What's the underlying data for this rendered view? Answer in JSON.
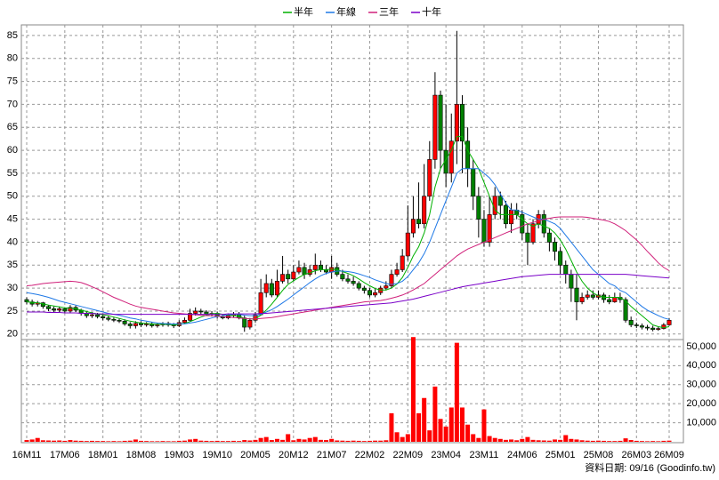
{
  "chart_data": {
    "type": "candlestick",
    "legend": "top",
    "grid": true,
    "footnote": "資料日期: 09/16 (Goodinfo.tw)",
    "up_color": "#ff0000",
    "down_color": "#008000",
    "categories": [
      "16M11",
      null,
      null,
      null,
      null,
      null,
      null,
      "17M06",
      null,
      null,
      null,
      null,
      null,
      null,
      "18M01",
      null,
      null,
      null,
      null,
      null,
      null,
      "18M08",
      null,
      null,
      null,
      null,
      null,
      null,
      "19M03",
      null,
      null,
      null,
      null,
      null,
      null,
      "19M10",
      null,
      null,
      null,
      null,
      null,
      null,
      "20M05",
      null,
      null,
      null,
      null,
      null,
      null,
      "20M12",
      null,
      null,
      null,
      null,
      null,
      null,
      "21M07",
      null,
      null,
      null,
      null,
      null,
      null,
      "22M02",
      null,
      null,
      null,
      null,
      null,
      null,
      "22M09",
      null,
      null,
      null,
      null,
      null,
      null,
      "23M04",
      null,
      null,
      null,
      null,
      null,
      null,
      "23M11",
      null,
      null,
      null,
      null,
      null,
      null,
      "24M06",
      null,
      null,
      null,
      null,
      null,
      null,
      "25M01",
      null,
      null,
      null,
      null,
      null,
      null,
      "25M08",
      null,
      null,
      null,
      null,
      null,
      null,
      "26M03",
      null,
      null,
      null,
      null,
      null,
      "26M09"
    ],
    "open": [
      27.5,
      27,
      26.5,
      26.8,
      26,
      25.5,
      25.2,
      25.5,
      25,
      25.8,
      25.2,
      24.5,
      24,
      24.2,
      23.8,
      23.5,
      23.2,
      23,
      22.8,
      22.2,
      21.8,
      22.3,
      22,
      22.2,
      21.8,
      22,
      22.3,
      22,
      21.8,
      22.5,
      23,
      24.5,
      25,
      24.8,
      24.3,
      24.5,
      23.8,
      23.5,
      24,
      24.3,
      23.5,
      21.5,
      23,
      24.2,
      29,
      31,
      28.5,
      31.5,
      33,
      32,
      33.5,
      34.5,
      33,
      34,
      35,
      34,
      33.5,
      34.5,
      33,
      32,
      31.5,
      31,
      30,
      29.5,
      28.5,
      29,
      30,
      30.5,
      33,
      34,
      37,
      42,
      45,
      44,
      50,
      58,
      72,
      60,
      55,
      62,
      70,
      62,
      56,
      50,
      45,
      40,
      46,
      50,
      48,
      44,
      47,
      46,
      42,
      40,
      44,
      46,
      42,
      40,
      38,
      35,
      33,
      30,
      27,
      28,
      28.5,
      28,
      28.5,
      27.5,
      27,
      28,
      27.5,
      23,
      22,
      21.8,
      21.5,
      21.3,
      21,
      21.2,
      22
    ],
    "high": [
      28,
      27.5,
      27.2,
      27,
      26.3,
      26,
      26,
      25.8,
      26.3,
      26.2,
      25.5,
      25,
      24.8,
      24.6,
      24.2,
      24,
      23.6,
      23.4,
      23.2,
      22.6,
      22.8,
      22.8,
      22.6,
      22.6,
      22.4,
      22.6,
      22.7,
      22.4,
      23,
      23.6,
      25.5,
      25.8,
      25.5,
      25.2,
      25,
      24.9,
      24.2,
      24.5,
      24.8,
      24.8,
      24,
      23.5,
      24.8,
      32,
      33,
      32,
      34,
      37,
      34,
      35,
      36,
      35.5,
      35,
      37.5,
      36,
      35,
      37,
      35.5,
      34,
      33,
      32.5,
      31.5,
      30.5,
      30,
      29.8,
      30.5,
      31.5,
      34,
      35.5,
      38.5,
      48,
      50,
      53,
      57,
      62,
      77,
      73,
      70,
      68,
      86,
      72,
      65,
      58,
      52,
      47,
      50,
      52,
      51,
      49,
      48.5,
      48.5,
      47,
      44,
      45,
      47,
      47,
      43,
      41,
      39,
      36,
      34,
      33,
      29,
      29.5,
      29.5,
      29.5,
      29,
      28.5,
      29,
      29,
      28,
      23.8,
      22.5,
      22.3,
      22,
      21.8,
      21.6,
      22.4,
      23.5
    ],
    "low": [
      26.5,
      26,
      26,
      25.5,
      25,
      24.8,
      24.8,
      24.5,
      24.5,
      24.8,
      24,
      23.5,
      23.5,
      23.4,
      23,
      22.8,
      22.6,
      22.4,
      21.8,
      21.2,
      21.2,
      21.5,
      21.6,
      21.4,
      21.4,
      21.6,
      21.6,
      21.3,
      21.5,
      22.2,
      22.8,
      24,
      24.2,
      24,
      23.8,
      23.4,
      23.2,
      23.2,
      23.6,
      23.2,
      20.5,
      21,
      22.5,
      24,
      28,
      28,
      28,
      31,
      31,
      31.5,
      33,
      32,
      32.5,
      33,
      33.5,
      33,
      32,
      32.5,
      31.5,
      31,
      30.5,
      29.5,
      28.8,
      28,
      28,
      28.5,
      29.5,
      30,
      32.5,
      33.5,
      36,
      41,
      43,
      43,
      49,
      56,
      56,
      52,
      53,
      57,
      55,
      52,
      47,
      41,
      39,
      39,
      45,
      45,
      43,
      42,
      45,
      40.5,
      35,
      39.5,
      43,
      41,
      38,
      36,
      33,
      31,
      27,
      23,
      26.5,
      27.5,
      27.5,
      27.5,
      26.8,
      26.5,
      26.8,
      26.8,
      22.5,
      21.5,
      21.3,
      21,
      20.8,
      20.6,
      20.7,
      21,
      21.8
    ],
    "close": [
      27,
      26.5,
      26.8,
      26,
      25.5,
      25.2,
      25.5,
      25,
      25.8,
      25.2,
      24.5,
      24,
      24.2,
      23.8,
      23.5,
      23.2,
      23,
      22.8,
      22.2,
      21.8,
      22.3,
      22,
      22.2,
      21.8,
      22,
      22.3,
      22,
      21.8,
      22.5,
      23,
      24.5,
      25,
      24.8,
      24.3,
      24.5,
      23.8,
      23.5,
      24,
      24.3,
      23.5,
      21.5,
      23,
      24.2,
      29,
      31,
      28.5,
      31.5,
      33,
      32,
      33.5,
      34.5,
      33,
      34,
      35,
      34,
      33.5,
      34.5,
      33,
      32,
      31.5,
      31,
      30,
      29.5,
      28.5,
      29,
      30,
      30.5,
      33,
      34,
      37,
      42,
      45,
      44,
      50,
      58,
      72,
      60,
      55,
      62,
      70,
      62,
      56,
      50,
      45,
      40,
      46,
      50,
      48,
      44,
      47,
      46,
      42,
      40,
      44,
      46,
      42,
      40,
      38,
      35,
      33,
      30,
      27,
      28,
      28.5,
      28,
      28.5,
      27.5,
      27,
      28,
      27.5,
      23,
      22,
      21.8,
      21.5,
      21.3,
      21,
      21.2,
      22,
      23
    ],
    "ylim": [
      18.8,
      87.3
    ],
    "yticks": [
      20,
      25,
      30,
      35,
      40,
      45,
      50,
      55,
      60,
      65,
      70,
      75,
      80,
      85
    ],
    "series": [
      {
        "name": "半年",
        "color": "#00b000",
        "values": [
          27,
          26.9,
          26.8,
          26.6,
          26.3,
          26.1,
          25.9,
          25.7,
          25.6,
          25.5,
          25.2,
          24.9,
          24.6,
          24.4,
          24.2,
          24,
          23.7,
          23.4,
          23.1,
          22.8,
          22.6,
          22.4,
          22.3,
          22.2,
          22.1,
          22.1,
          22.1,
          22,
          22.1,
          22.3,
          22.7,
          23.2,
          23.7,
          24.1,
          24.4,
          24.5,
          24.3,
          24.1,
          24,
          23.9,
          23.4,
          23.3,
          23.3,
          24.1,
          25.2,
          26.5,
          28,
          29.5,
          30.8,
          31.6,
          32.3,
          33,
          33.3,
          33.8,
          34,
          34,
          34.1,
          34,
          33.6,
          33.2,
          32.7,
          32,
          31.2,
          30.5,
          29.9,
          29.6,
          29.6,
          30,
          30.9,
          32.3,
          34.5,
          37,
          39,
          42,
          46,
          52,
          56,
          58,
          60,
          63,
          63,
          60,
          58,
          56,
          53,
          50,
          47,
          46,
          46,
          46,
          46,
          45,
          44,
          43.5,
          44,
          43.5,
          43,
          42,
          40.5,
          38.5,
          36,
          33.5,
          31.5,
          30,
          29,
          28.3,
          28,
          28,
          28,
          28,
          27.2,
          26,
          25,
          24,
          23,
          22,
          21.6,
          21.4,
          21.6
        ]
      },
      {
        "name": "年線",
        "color": "#1e78e6",
        "values": [
          29,
          28.8,
          28.6,
          28.3,
          28,
          27.6,
          27.2,
          26.9,
          26.6,
          26.3,
          26,
          25.7,
          25.4,
          25.1,
          24.8,
          24.5,
          24.3,
          24.1,
          23.8,
          23.5,
          23.3,
          23,
          22.8,
          22.6,
          22.4,
          22.3,
          22.2,
          22.2,
          22.2,
          22.2,
          22.4,
          22.6,
          22.9,
          23.2,
          23.5,
          23.8,
          24,
          24.2,
          24.3,
          24.3,
          24.1,
          24,
          24,
          24.3,
          24.8,
          25.3,
          26,
          26.8,
          27.6,
          28.5,
          29.4,
          30.3,
          31.2,
          32,
          32.7,
          33.2,
          33.5,
          33.7,
          33.7,
          33.6,
          33.4,
          33.1,
          32.7,
          32.3,
          31.8,
          31.4,
          31,
          30.8,
          31,
          31.5,
          32.5,
          34,
          35.5,
          37.5,
          40,
          43,
          46,
          49,
          52,
          55,
          56,
          56,
          56,
          56,
          55,
          54,
          52.5,
          50.5,
          48.5,
          47,
          47,
          46.5,
          46,
          45.5,
          45,
          45,
          44.5,
          44,
          43,
          41.5,
          40,
          38.5,
          37,
          35.5,
          34,
          33,
          32,
          31,
          30.5,
          29.5,
          29,
          28,
          27,
          26,
          25.2,
          24.6,
          24,
          23.5,
          23.2
        ]
      },
      {
        "name": "三年",
        "color": "#d0207a",
        "values": [
          30.5,
          30.6,
          30.8,
          31,
          31.1,
          31.2,
          31.3,
          31.4,
          31.5,
          31.4,
          31.2,
          30.8,
          30.3,
          29.8,
          29.2,
          28.6,
          28,
          27.5,
          27,
          26.5,
          26.1,
          25.8,
          25.6,
          25.4,
          25.2,
          25,
          24.8,
          24.6,
          24.5,
          24.4,
          24.3,
          24.2,
          24.1,
          24,
          24,
          23.9,
          23.8,
          23.7,
          23.6,
          23.5,
          23.4,
          23.3,
          23.3,
          23.4,
          23.5,
          23.6,
          23.8,
          24,
          24.2,
          24.4,
          24.6,
          24.8,
          25,
          25.2,
          25.4,
          25.6,
          25.8,
          26,
          26.2,
          26.4,
          26.6,
          26.8,
          27,
          27.1,
          27.2,
          27.3,
          27.5,
          27.8,
          28.1,
          28.5,
          29,
          29.6,
          30.3,
          31,
          32,
          33,
          34,
          35,
          36,
          37,
          37.8,
          38.5,
          39,
          39.5,
          40,
          40.5,
          41,
          41.5,
          42,
          42.5,
          43,
          43.5,
          44,
          44.3,
          44.6,
          45,
          45.2,
          45.4,
          45.5,
          45.5,
          45.5,
          45.5,
          45.5,
          45.4,
          45.2,
          45,
          44.8,
          44.5,
          44,
          43.3,
          42.5,
          41.5,
          40.5,
          39.3,
          38,
          36.8,
          35.5,
          34.5,
          33.8
        ]
      },
      {
        "name": "十年",
        "color": "#7a00c8",
        "values": [
          24.8,
          24.8,
          24.8,
          24.8,
          24.7,
          24.7,
          24.7,
          24.6,
          24.6,
          24.6,
          24.5,
          24.5,
          24.5,
          24.4,
          24.4,
          24.4,
          24.3,
          24.3,
          24.3,
          24.3,
          24.3,
          24.3,
          24.3,
          24.3,
          24.3,
          24.3,
          24.3,
          24.3,
          24.3,
          24.3,
          24.3,
          24.3,
          24.3,
          24.3,
          24.3,
          24.3,
          24.3,
          24.4,
          24.4,
          24.4,
          24.4,
          24.4,
          24.4,
          24.5,
          24.5,
          24.6,
          24.7,
          24.8,
          24.9,
          25,
          25.1,
          25.2,
          25.3,
          25.4,
          25.5,
          25.6,
          25.7,
          25.8,
          25.9,
          26,
          26.1,
          26.2,
          26.3,
          26.4,
          26.5,
          26.6,
          26.7,
          26.8,
          27,
          27.2,
          27.4,
          27.6,
          27.9,
          28.2,
          28.5,
          28.8,
          29.1,
          29.4,
          29.7,
          30,
          30.3,
          30.5,
          30.7,
          30.9,
          31.1,
          31.3,
          31.5,
          31.7,
          31.9,
          32.1,
          32.3,
          32.5,
          32.6,
          32.7,
          32.8,
          32.9,
          33,
          33,
          33,
          33,
          33,
          33,
          33,
          33,
          33,
          33,
          33,
          33,
          33,
          33,
          33,
          32.9,
          32.8,
          32.7,
          32.6,
          32.5,
          32.4,
          32.3,
          32.2
        ]
      }
    ],
    "volume": {
      "color": "#ff0000",
      "values": [
        900,
        1200,
        2000,
        800,
        700,
        600,
        700,
        500,
        900,
        600,
        500,
        400,
        500,
        400,
        400,
        300,
        400,
        300,
        500,
        600,
        1200,
        500,
        400,
        300,
        300,
        400,
        300,
        300,
        500,
        600,
        1200,
        1500,
        600,
        500,
        400,
        500,
        400,
        400,
        500,
        400,
        900,
        700,
        1000,
        2000,
        2500,
        900,
        1500,
        1000,
        4000,
        800,
        1500,
        1200,
        2000,
        2500,
        1000,
        900,
        1500,
        700,
        600,
        500,
        600,
        500,
        400,
        500,
        600,
        600,
        800,
        15000,
        5000,
        2500,
        4000,
        55000,
        15000,
        23000,
        6000,
        29000,
        12000,
        8000,
        18000,
        52000,
        18000,
        9000,
        4000,
        2000,
        17000,
        3000,
        2000,
        1500,
        1000,
        1200,
        800,
        1500,
        2500,
        1000,
        800,
        700,
        600,
        1200,
        1000,
        3500,
        1500,
        1200,
        800,
        600,
        500,
        600,
        500,
        400,
        400,
        500,
        1800,
        900,
        500,
        400,
        300,
        400,
        300,
        500,
        600
      ],
      "ylim": [
        0,
        53700
      ],
      "yticks": [
        {
          "value": 10000,
          "label": "10,000"
        },
        {
          "value": 20000,
          "label": "20,000"
        },
        {
          "value": 30000,
          "label": "30,000"
        },
        {
          "value": 40000,
          "label": "40,000"
        },
        {
          "value": 50000,
          "label": "50,000"
        }
      ]
    }
  }
}
